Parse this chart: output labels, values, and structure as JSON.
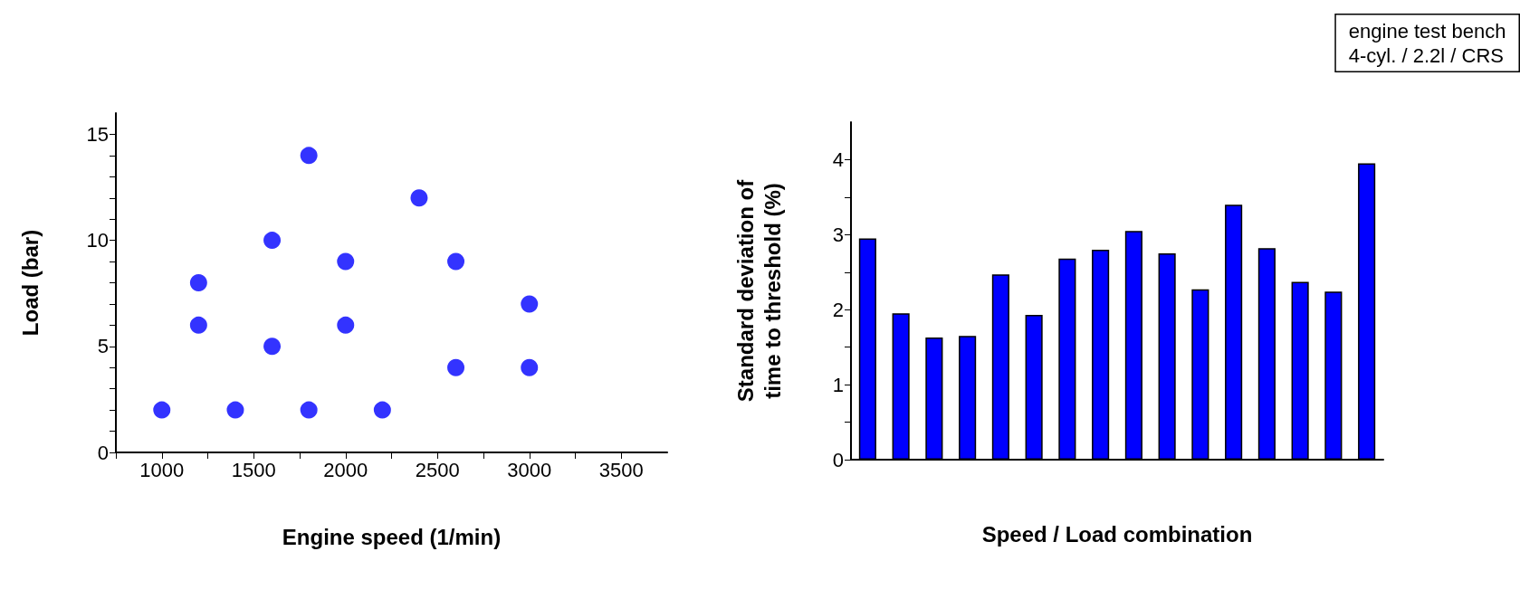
{
  "chart_data": [
    {
      "type": "scatter",
      "xlabel": "Engine speed (1/min)",
      "ylabel": "Load (bar)",
      "marker": "circle",
      "xlim": [
        750,
        3750
      ],
      "xticks": [
        {
          "value": 750,
          "label": null
        },
        1000,
        {
          "value": 1250,
          "label": null
        },
        1500,
        {
          "value": 1750,
          "label": null
        },
        2000,
        {
          "value": 2250,
          "label": null
        },
        2500,
        {
          "value": 2750,
          "label": null
        },
        3000,
        {
          "value": 3250,
          "label": null
        },
        3500
      ],
      "ylim": [
        0,
        16
      ],
      "yticks": [
        0,
        {
          "value": 1,
          "label": null
        },
        {
          "value": 2,
          "label": null
        },
        {
          "value": 3,
          "label": null
        },
        {
          "value": 4,
          "label": null
        },
        5,
        {
          "value": 6,
          "label": null
        },
        {
          "value": 7,
          "label": null
        },
        {
          "value": 8,
          "label": null
        },
        {
          "value": 9,
          "label": null
        },
        10,
        {
          "value": 11,
          "label": null
        },
        {
          "value": 12,
          "label": null
        },
        {
          "value": 13,
          "label": null
        },
        {
          "value": 14,
          "label": null
        },
        15
      ],
      "series": [
        {
          "color": "#0000ff",
          "x": [
            1000,
            1200,
            1200,
            1400,
            1600,
            1600,
            1800,
            1800,
            2000,
            2000,
            2200,
            2400,
            2600,
            2600,
            3000,
            3000
          ],
          "values": [
            2,
            8,
            6,
            2,
            10,
            5,
            14,
            2,
            9,
            6,
            2,
            12,
            9,
            4,
            7,
            4
          ]
        }
      ]
    },
    {
      "type": "bar",
      "xlabel": "Speed / Load combination",
      "ylabel": "Standard deviation of\ntime to threshold (%)",
      "annotations": [
        "engine test bench\n4-cyl. / 2.2l / CRS"
      ],
      "categories": [
        null,
        null,
        null,
        null,
        null,
        null,
        null,
        null,
        null,
        null,
        null,
        null,
        null,
        null,
        null,
        null
      ],
      "ylim": [
        0,
        4.5
      ],
      "yticks": [
        0,
        {
          "value": 0.5,
          "label": null
        },
        1,
        {
          "value": 1.5,
          "label": null
        },
        2,
        {
          "value": 2.5,
          "label": null
        },
        3,
        {
          "value": 3.5,
          "label": null
        },
        4
      ],
      "series": [
        {
          "color": "#0000ff",
          "values": [
            2.95,
            1.95,
            1.63,
            1.65,
            2.47,
            1.93,
            2.68,
            2.8,
            3.05,
            2.75,
            2.27,
            3.4,
            2.82,
            2.37,
            2.24,
            3.95
          ]
        }
      ]
    }
  ]
}
